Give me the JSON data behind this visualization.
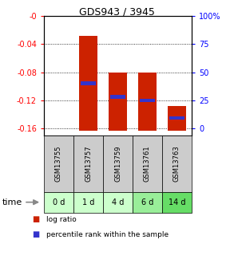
{
  "title": "GDS943 / 3945",
  "categories": [
    "GSM13755",
    "GSM13757",
    "GSM13759",
    "GSM13761",
    "GSM13763"
  ],
  "time_labels": [
    "0 d",
    "1 d",
    "4 d",
    "6 d",
    "14 d"
  ],
  "bar_tops": [
    0.0,
    -0.028,
    -0.08,
    -0.08,
    -0.128
  ],
  "bar_bottoms": [
    0.0,
    -0.163,
    -0.163,
    -0.163,
    -0.163
  ],
  "blue_positions": [
    null,
    -0.096,
    -0.115,
    -0.12,
    -0.145
  ],
  "ylim": [
    -0.17,
    0.0
  ],
  "yticks": [
    0.0,
    -0.04,
    -0.08,
    -0.12,
    -0.16
  ],
  "ytick_labels": [
    "-0",
    "-0.04",
    "-0.08",
    "-0.12",
    "-0.16"
  ],
  "right_ytick_labels": [
    "100%",
    "75",
    "50",
    "25",
    "0"
  ],
  "bar_color": "#cc2200",
  "blue_color": "#3333cc",
  "time_bg_colors": [
    "#ccffcc",
    "#ccffcc",
    "#ccffcc",
    "#99ee99",
    "#66dd66"
  ],
  "gsm_bg_color": "#cccccc",
  "bar_width": 0.6,
  "figsize": [
    2.93,
    3.45
  ],
  "dpi": 100
}
